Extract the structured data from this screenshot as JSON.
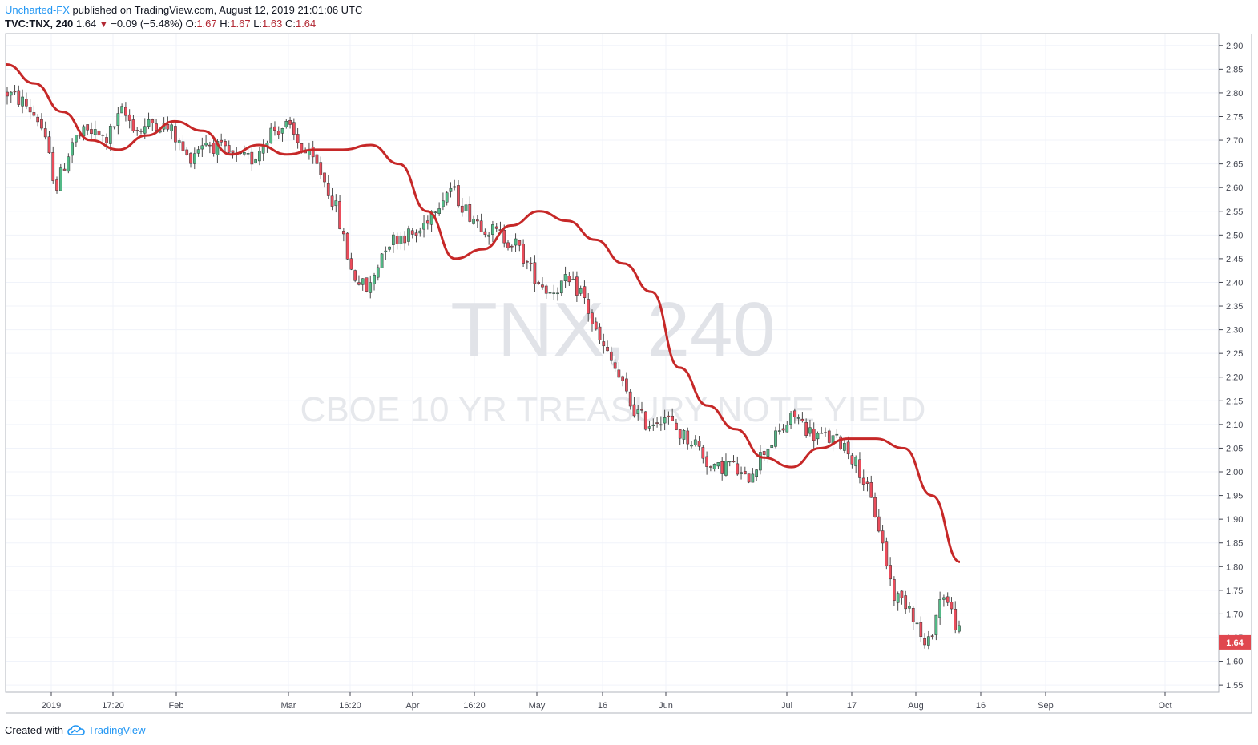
{
  "header": {
    "author": "Uncharted-FX",
    "published": "published on TradingView.com, August 12, 2019 21:01:06 UTC",
    "symbol": "TVC:TNX, 240",
    "last": "1.64",
    "change": "−0.09 (−5.48%)",
    "o_label": "O:",
    "o_value": "1.67",
    "h_label": "H:",
    "h_value": "1.67",
    "l_label": "L:",
    "l_value": "1.63",
    "c_label": "C:",
    "c_value": "1.64"
  },
  "watermark": {
    "main": "TNX, 240",
    "sub": "CBOE 10 YR TREASURY NOTE YIELD"
  },
  "footer": {
    "created_with": "Created with",
    "brand": "TradingView"
  },
  "colors": {
    "up": "#53b987",
    "down": "#eb4d5c",
    "ma": "#c62828",
    "price_tag": "#e0474f",
    "grid": "#f0f3fa",
    "axis": "#434651",
    "author": "#2196f3"
  },
  "chart_data": {
    "type": "candlestick",
    "y_axis": {
      "min": 1.55,
      "max": 2.9,
      "ticks": [
        "1.55",
        "1.60",
        "1.65",
        "1.70",
        "1.75",
        "1.80",
        "1.85",
        "1.90",
        "1.95",
        "2.00",
        "2.05",
        "2.10",
        "2.15",
        "2.20",
        "2.25",
        "2.30",
        "2.35",
        "2.40",
        "2.45",
        "2.50",
        "2.55",
        "2.60",
        "2.65",
        "2.70",
        "2.75",
        "2.80",
        "2.85",
        "2.90"
      ],
      "side": "right"
    },
    "x_axis": {
      "ticks": [
        "2019",
        "17:20",
        "Feb",
        "Mar",
        "16:20",
        "Apr",
        "16:20",
        "May",
        "16",
        "Jun",
        "Jul",
        "17",
        "Aug",
        "16",
        "Sep",
        "Oct"
      ]
    },
    "last_price_label": "1.64",
    "moving_average": [
      2.86,
      2.82,
      2.76,
      2.7,
      2.68,
      2.71,
      2.74,
      2.72,
      2.67,
      2.69,
      2.67,
      2.68,
      2.68,
      2.69,
      2.65,
      2.55,
      2.45,
      2.47,
      2.52,
      2.55,
      2.53,
      2.49,
      2.44,
      2.38,
      2.22,
      2.14,
      2.09,
      2.03,
      2.01,
      2.05,
      2.07,
      2.07,
      2.05,
      1.95,
      1.81
    ],
    "candle_path": [
      2.8,
      2.78,
      2.74,
      2.6,
      2.7,
      2.72,
      2.7,
      2.76,
      2.72,
      2.74,
      2.72,
      2.66,
      2.7,
      2.68,
      2.66,
      2.66,
      2.72,
      2.73,
      2.68,
      2.64,
      2.56,
      2.42,
      2.38,
      2.48,
      2.5,
      2.5,
      2.56,
      2.6,
      2.55,
      2.52,
      2.5,
      2.48,
      2.42,
      2.38,
      2.4,
      2.38,
      2.28,
      2.22,
      2.14,
      2.1,
      2.12,
      2.08,
      2.06,
      2.0,
      2.02,
      1.98,
      2.04,
      2.08,
      2.12,
      2.08,
      2.07,
      2.06,
      2.0,
      1.9,
      1.74,
      1.72,
      1.62,
      1.75,
      1.66
    ]
  }
}
